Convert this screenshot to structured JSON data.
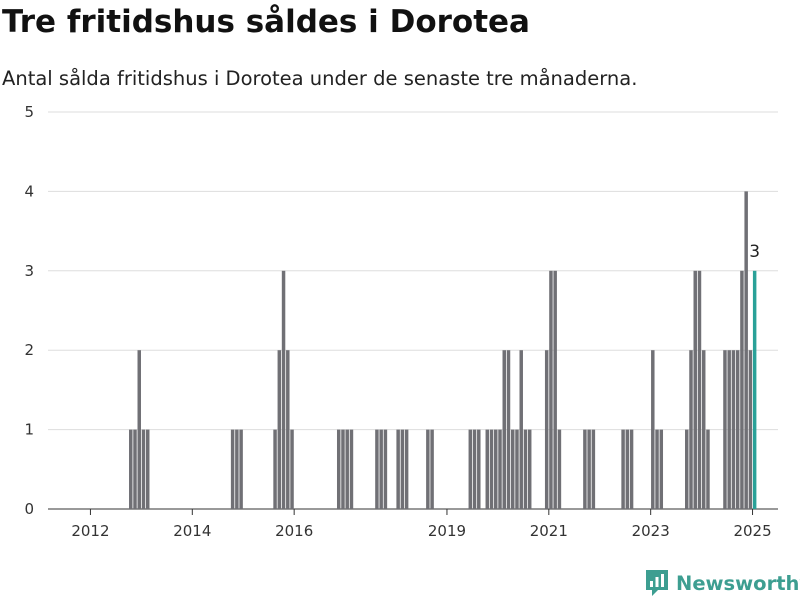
{
  "title": "Tre fritidshus såldes i Dorotea",
  "subtitle": "Antal sålda fritidshus i Dorotea under de senaste tre månaderna.",
  "brand": "Newsworthy",
  "colors": {
    "bar": "#707075",
    "highlight": "#2aa198",
    "grid": "#dddddd",
    "brand": "#3d9e91"
  },
  "chart_data": {
    "type": "bar",
    "ylim": [
      0,
      5
    ],
    "yticks": [
      0,
      1,
      2,
      3,
      4,
      5
    ],
    "xlim": [
      "2011-03",
      "2025-07"
    ],
    "xticks": [
      {
        "date": "2012-01",
        "label": "2012"
      },
      {
        "date": "2014-01",
        "label": "2014"
      },
      {
        "date": "2016-01",
        "label": "2016"
      },
      {
        "date": "2019-01",
        "label": "2019"
      },
      {
        "date": "2021-01",
        "label": "2021"
      },
      {
        "date": "2023-01",
        "label": "2023"
      },
      {
        "date": "2025-01",
        "label": "2025"
      }
    ],
    "grid": true,
    "series": [
      {
        "values": [
          {
            "x": "2012-10",
            "y": 1
          },
          {
            "x": "2012-11",
            "y": 1
          },
          {
            "x": "2012-12",
            "y": 2
          },
          {
            "x": "2013-01",
            "y": 1
          },
          {
            "x": "2013-02",
            "y": 1
          },
          {
            "x": "2014-10",
            "y": 1
          },
          {
            "x": "2014-11",
            "y": 1
          },
          {
            "x": "2014-12",
            "y": 1
          },
          {
            "x": "2015-08",
            "y": 1
          },
          {
            "x": "2015-09",
            "y": 2
          },
          {
            "x": "2015-10",
            "y": 3
          },
          {
            "x": "2015-11",
            "y": 2
          },
          {
            "x": "2015-12",
            "y": 1
          },
          {
            "x": "2016-11",
            "y": 1
          },
          {
            "x": "2016-12",
            "y": 1
          },
          {
            "x": "2017-01",
            "y": 1
          },
          {
            "x": "2017-02",
            "y": 1
          },
          {
            "x": "2017-08",
            "y": 1
          },
          {
            "x": "2017-09",
            "y": 1
          },
          {
            "x": "2017-10",
            "y": 1
          },
          {
            "x": "2018-01",
            "y": 1
          },
          {
            "x": "2018-02",
            "y": 1
          },
          {
            "x": "2018-03",
            "y": 1
          },
          {
            "x": "2018-08",
            "y": 1
          },
          {
            "x": "2018-09",
            "y": 1
          },
          {
            "x": "2019-06",
            "y": 1
          },
          {
            "x": "2019-07",
            "y": 1
          },
          {
            "x": "2019-08",
            "y": 1
          },
          {
            "x": "2019-10",
            "y": 1
          },
          {
            "x": "2019-11",
            "y": 1
          },
          {
            "x": "2019-12",
            "y": 1
          },
          {
            "x": "2020-01",
            "y": 1
          },
          {
            "x": "2020-02",
            "y": 2
          },
          {
            "x": "2020-03",
            "y": 2
          },
          {
            "x": "2020-04",
            "y": 1
          },
          {
            "x": "2020-05",
            "y": 1
          },
          {
            "x": "2020-06",
            "y": 2
          },
          {
            "x": "2020-07",
            "y": 1
          },
          {
            "x": "2020-08",
            "y": 1
          },
          {
            "x": "2020-12",
            "y": 2
          },
          {
            "x": "2021-01",
            "y": 3
          },
          {
            "x": "2021-02",
            "y": 3
          },
          {
            "x": "2021-03",
            "y": 1
          },
          {
            "x": "2021-09",
            "y": 1
          },
          {
            "x": "2021-10",
            "y": 1
          },
          {
            "x": "2021-11",
            "y": 1
          },
          {
            "x": "2022-06",
            "y": 1
          },
          {
            "x": "2022-07",
            "y": 1
          },
          {
            "x": "2022-08",
            "y": 1
          },
          {
            "x": "2023-01",
            "y": 2
          },
          {
            "x": "2023-02",
            "y": 1
          },
          {
            "x": "2023-03",
            "y": 1
          },
          {
            "x": "2023-09",
            "y": 1
          },
          {
            "x": "2023-10",
            "y": 2
          },
          {
            "x": "2023-11",
            "y": 3
          },
          {
            "x": "2023-12",
            "y": 3
          },
          {
            "x": "2024-01",
            "y": 2
          },
          {
            "x": "2024-02",
            "y": 1
          },
          {
            "x": "2024-06",
            "y": 2
          },
          {
            "x": "2024-07",
            "y": 2
          },
          {
            "x": "2024-08",
            "y": 2
          },
          {
            "x": "2024-09",
            "y": 2
          },
          {
            "x": "2024-10",
            "y": 3
          },
          {
            "x": "2024-11",
            "y": 4
          },
          {
            "x": "2024-12",
            "y": 2
          }
        ]
      }
    ],
    "highlight": {
      "x": "2025-01",
      "y": 3,
      "label": "3"
    }
  }
}
